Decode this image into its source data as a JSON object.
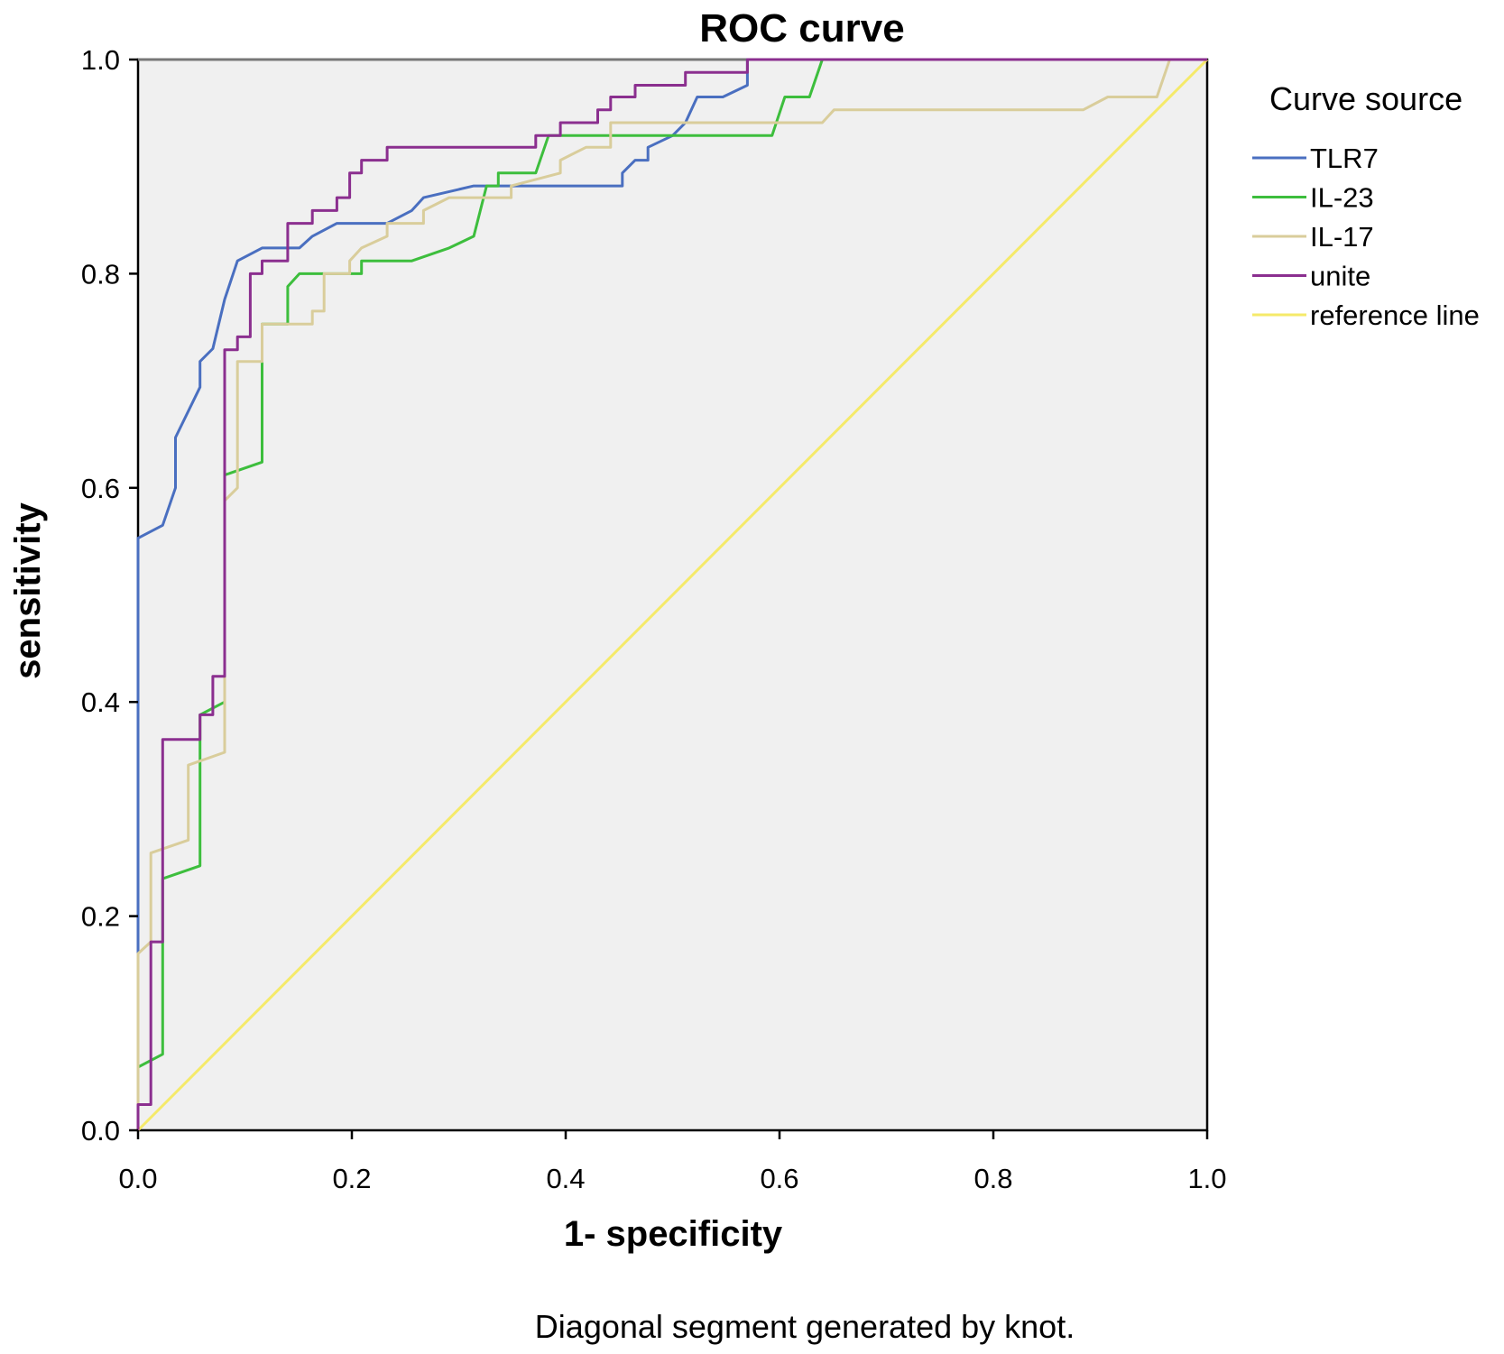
{
  "chart_data": {
    "type": "line",
    "title": "ROC curve",
    "xlabel": "1- specificity",
    "ylabel": "sensitivity",
    "xlim": [
      0,
      1
    ],
    "ylim": [
      0,
      1
    ],
    "x_ticks": [
      0.0,
      0.2,
      0.4,
      0.6,
      0.8,
      1.0
    ],
    "y_ticks": [
      0.0,
      0.2,
      0.4,
      0.6,
      0.8,
      1.0
    ],
    "x_tick_labels": [
      "0.0",
      "0.2",
      "0.4",
      "0.6",
      "0.8",
      "1.0"
    ],
    "y_tick_labels": [
      "0.0",
      "0.2",
      "0.4",
      "0.6",
      "0.8",
      "1.0"
    ],
    "grid": false,
    "legend": {
      "title": "Curve source",
      "placement": "right"
    },
    "footnote": "Diagonal segment generated by knot.",
    "series": [
      {
        "name": "TLR7",
        "color": "#4a6fc0",
        "points": [
          [
            0,
            0
          ],
          [
            0,
            0.553
          ],
          [
            0.023,
            0.565
          ],
          [
            0.035,
            0.6
          ],
          [
            0.035,
            0.647
          ],
          [
            0.058,
            0.694
          ],
          [
            0.058,
            0.718
          ],
          [
            0.07,
            0.73
          ],
          [
            0.081,
            0.776
          ],
          [
            0.093,
            0.812
          ],
          [
            0.116,
            0.824
          ],
          [
            0.151,
            0.824
          ],
          [
            0.163,
            0.835
          ],
          [
            0.186,
            0.847
          ],
          [
            0.233,
            0.847
          ],
          [
            0.256,
            0.859
          ],
          [
            0.267,
            0.871
          ],
          [
            0.314,
            0.882
          ],
          [
            0.337,
            0.882
          ],
          [
            0.372,
            0.882
          ],
          [
            0.453,
            0.882
          ],
          [
            0.453,
            0.894
          ],
          [
            0.465,
            0.906
          ],
          [
            0.477,
            0.906
          ],
          [
            0.477,
            0.918
          ],
          [
            0.5,
            0.929
          ],
          [
            0.512,
            0.941
          ],
          [
            0.523,
            0.965
          ],
          [
            0.547,
            0.965
          ],
          [
            0.57,
            0.976
          ],
          [
            0.57,
            1.0
          ],
          [
            1.0,
            1.0
          ]
        ]
      },
      {
        "name": "IL-23",
        "color": "#3dbe3d",
        "points": [
          [
            0,
            0
          ],
          [
            0,
            0.059
          ],
          [
            0.023,
            0.071
          ],
          [
            0.023,
            0.235
          ],
          [
            0.058,
            0.247
          ],
          [
            0.058,
            0.388
          ],
          [
            0.081,
            0.4
          ],
          [
            0.081,
            0.612
          ],
          [
            0.116,
            0.624
          ],
          [
            0.116,
            0.753
          ],
          [
            0.14,
            0.753
          ],
          [
            0.14,
            0.788
          ],
          [
            0.151,
            0.8
          ],
          [
            0.209,
            0.8
          ],
          [
            0.209,
            0.812
          ],
          [
            0.256,
            0.812
          ],
          [
            0.291,
            0.824
          ],
          [
            0.314,
            0.835
          ],
          [
            0.326,
            0.882
          ],
          [
            0.337,
            0.882
          ],
          [
            0.337,
            0.894
          ],
          [
            0.372,
            0.894
          ],
          [
            0.384,
            0.929
          ],
          [
            0.593,
            0.929
          ],
          [
            0.605,
            0.965
          ],
          [
            0.628,
            0.965
          ],
          [
            0.64,
            1.0
          ],
          [
            1.0,
            1.0
          ]
        ]
      },
      {
        "name": "IL-17",
        "color": "#d9cd9b",
        "points": [
          [
            0,
            0
          ],
          [
            0,
            0.165
          ],
          [
            0.012,
            0.176
          ],
          [
            0.012,
            0.259
          ],
          [
            0.047,
            0.271
          ],
          [
            0.047,
            0.341
          ],
          [
            0.081,
            0.353
          ],
          [
            0.081,
            0.588
          ],
          [
            0.093,
            0.6
          ],
          [
            0.093,
            0.718
          ],
          [
            0.116,
            0.718
          ],
          [
            0.116,
            0.753
          ],
          [
            0.163,
            0.753
          ],
          [
            0.163,
            0.765
          ],
          [
            0.174,
            0.765
          ],
          [
            0.174,
            0.8
          ],
          [
            0.198,
            0.8
          ],
          [
            0.198,
            0.812
          ],
          [
            0.209,
            0.824
          ],
          [
            0.233,
            0.835
          ],
          [
            0.233,
            0.847
          ],
          [
            0.267,
            0.847
          ],
          [
            0.267,
            0.859
          ],
          [
            0.291,
            0.871
          ],
          [
            0.349,
            0.871
          ],
          [
            0.349,
            0.882
          ],
          [
            0.395,
            0.894
          ],
          [
            0.395,
            0.906
          ],
          [
            0.419,
            0.918
          ],
          [
            0.442,
            0.918
          ],
          [
            0.442,
            0.941
          ],
          [
            0.64,
            0.941
          ],
          [
            0.651,
            0.953
          ],
          [
            0.884,
            0.953
          ],
          [
            0.907,
            0.965
          ],
          [
            0.953,
            0.965
          ],
          [
            0.965,
            1.0
          ],
          [
            1.0,
            1.0
          ]
        ]
      },
      {
        "name": "unite",
        "color": "#8b2f8f",
        "points": [
          [
            0,
            0
          ],
          [
            0,
            0.024
          ],
          [
            0.012,
            0.024
          ],
          [
            0.012,
            0.176
          ],
          [
            0.023,
            0.176
          ],
          [
            0.023,
            0.365
          ],
          [
            0.058,
            0.365
          ],
          [
            0.058,
            0.388
          ],
          [
            0.07,
            0.388
          ],
          [
            0.07,
            0.424
          ],
          [
            0.081,
            0.424
          ],
          [
            0.081,
            0.729
          ],
          [
            0.093,
            0.729
          ],
          [
            0.093,
            0.741
          ],
          [
            0.105,
            0.741
          ],
          [
            0.105,
            0.8
          ],
          [
            0.116,
            0.8
          ],
          [
            0.116,
            0.812
          ],
          [
            0.14,
            0.812
          ],
          [
            0.14,
            0.847
          ],
          [
            0.163,
            0.847
          ],
          [
            0.163,
            0.859
          ],
          [
            0.186,
            0.859
          ],
          [
            0.186,
            0.871
          ],
          [
            0.198,
            0.871
          ],
          [
            0.198,
            0.894
          ],
          [
            0.209,
            0.894
          ],
          [
            0.209,
            0.906
          ],
          [
            0.233,
            0.906
          ],
          [
            0.233,
            0.918
          ],
          [
            0.372,
            0.918
          ],
          [
            0.372,
            0.929
          ],
          [
            0.395,
            0.929
          ],
          [
            0.395,
            0.941
          ],
          [
            0.43,
            0.941
          ],
          [
            0.43,
            0.953
          ],
          [
            0.442,
            0.953
          ],
          [
            0.442,
            0.965
          ],
          [
            0.465,
            0.965
          ],
          [
            0.465,
            0.976
          ],
          [
            0.512,
            0.976
          ],
          [
            0.512,
            0.988
          ],
          [
            0.57,
            0.988
          ],
          [
            0.57,
            1.0
          ],
          [
            1.0,
            1.0
          ]
        ]
      },
      {
        "name": "reference line",
        "color": "#f5ea6a",
        "points": [
          [
            0,
            0
          ],
          [
            1,
            1
          ]
        ]
      }
    ]
  }
}
